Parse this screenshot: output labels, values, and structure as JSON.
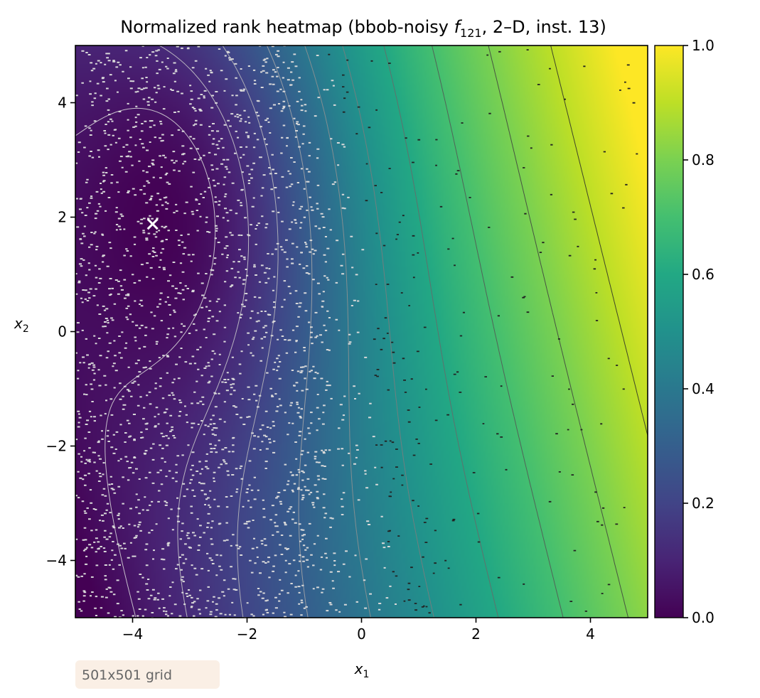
{
  "chart_data": {
    "type": "heatmap",
    "title": {
      "prefix": "Normalized rank heatmap (bbob-noisy ",
      "function_symbol": "f",
      "function_subscript": "121",
      "suffix": ", 2–D, inst. 13)"
    },
    "xlabel": {
      "symbol": "x",
      "subscript": "1"
    },
    "ylabel": {
      "symbol": "x",
      "subscript": "2"
    },
    "xlim": [
      -5,
      5
    ],
    "ylim": [
      -5,
      5
    ],
    "x_ticks": [
      {
        "value": -4,
        "label": "−4"
      },
      {
        "value": -2,
        "label": "−2"
      },
      {
        "value": 0,
        "label": "0"
      },
      {
        "value": 2,
        "label": "2"
      },
      {
        "value": 4,
        "label": "4"
      }
    ],
    "y_ticks": [
      {
        "value": -4,
        "label": "−4"
      },
      {
        "value": -2,
        "label": "−2"
      },
      {
        "value": 0,
        "label": "0"
      },
      {
        "value": 2,
        "label": "2"
      },
      {
        "value": 4,
        "label": "4"
      }
    ],
    "colormap": "viridis",
    "color_range": [
      0,
      1
    ],
    "colorbar_ticks": [
      {
        "value": 0.0,
        "label": "0.0"
      },
      {
        "value": 0.2,
        "label": "0.2"
      },
      {
        "value": 0.4,
        "label": "0.4"
      },
      {
        "value": 0.6,
        "label": "0.6"
      },
      {
        "value": 0.8,
        "label": "0.8"
      },
      {
        "value": 1.0,
        "label": "1.0"
      }
    ],
    "optimum": {
      "x": -3.65,
      "y": 1.88,
      "marker": "x",
      "color": "#ffffff"
    },
    "contour_levels": [
      0.05,
      0.12,
      0.2,
      0.3,
      0.4,
      0.5,
      0.6,
      0.7,
      0.8,
      0.9
    ],
    "noise_scatter": true,
    "annotation": "501x501 grid"
  }
}
